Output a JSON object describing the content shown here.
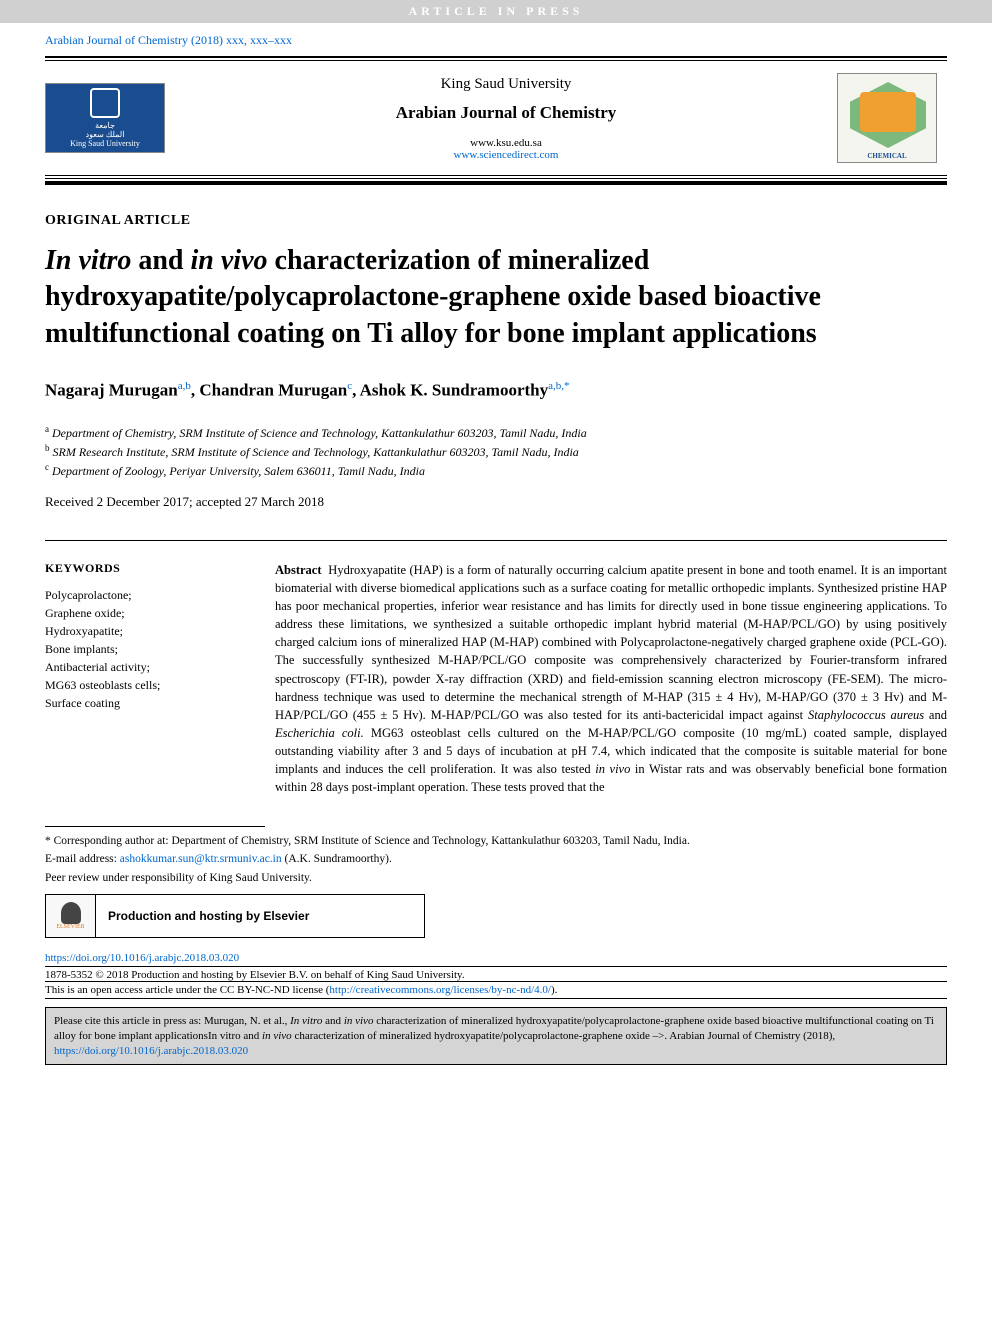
{
  "watermark": "ARTICLE IN PRESS",
  "running_header": "Arabian Journal of Chemistry (2018) xxx, xxx–xxx",
  "masthead": {
    "publisher": "King Saud University",
    "journal": "Arabian Journal of Chemistry",
    "url1": "www.ksu.edu.sa",
    "url2": "www.sciencedirect.com",
    "left_logo_line1": "جامعة",
    "left_logo_line2": "الملك سعود",
    "left_logo_line3": "King Saud University",
    "right_logo_label": "CHEMICAL"
  },
  "article": {
    "type": "ORIGINAL ARTICLE",
    "title_pre_italic1": "In vitro",
    "title_mid1": " and ",
    "title_italic2": "in vivo",
    "title_rest": " characterization of mineralized hydroxyapatite/polycaprolactone-graphene oxide based bioactive multifunctional coating on Ti alloy for bone implant applications",
    "authors": [
      {
        "name": "Nagaraj Murugan",
        "sup": "a,b"
      },
      {
        "name": "Chandran Murugan",
        "sup": "c"
      },
      {
        "name": "Ashok K. Sundramoorthy",
        "sup": "a,b,*"
      }
    ],
    "affiliations": [
      {
        "sup": "a",
        "text": "Department of Chemistry, SRM Institute of Science and Technology, Kattankulathur 603203, Tamil Nadu, India"
      },
      {
        "sup": "b",
        "text": "SRM Research Institute, SRM Institute of Science and Technology, Kattankulathur 603203, Tamil Nadu, India"
      },
      {
        "sup": "c",
        "text": "Department of Zoology, Periyar University, Salem 636011, Tamil Nadu, India"
      }
    ],
    "dates": "Received 2 December 2017; accepted 27 March 2018"
  },
  "keywords": {
    "heading": "KEYWORDS",
    "items": [
      "Polycaprolactone;",
      "Graphene oxide;",
      "Hydroxyapatite;",
      "Bone implants;",
      "Antibacterial activity;",
      "MG63 osteoblasts cells;",
      "Surface coating"
    ]
  },
  "abstract": {
    "lead": "Abstract",
    "body_part1": "Hydroxyapatite (HAP) is a form of naturally occurring calcium apatite present in bone and tooth enamel. It is an important biomaterial with diverse biomedical applications such as a surface coating for metallic orthopedic implants. Synthesized pristine HAP has poor mechanical properties, inferior wear resistance and has limits for directly used in bone tissue engineering applications. To address these limitations, we synthesized a suitable orthopedic implant hybrid material (M-HAP/PCL/GO) by using positively charged calcium ions of mineralized HAP (M-HAP) combined with Polycaprolactone-negatively charged graphene oxide (PCL-GO). The successfully synthesized M-HAP/PCL/GO composite was comprehensively characterized by Fourier-transform infrared spectroscopy (FT-IR), powder X-ray diffraction (XRD) and field-emission scanning electron microscopy (FE-SEM). The micro-hardness technique was used to determine the mechanical strength of M-HAP (315 ± 4 Hv), M-HAP/GO (370 ± 3 Hv) and M-HAP/PCL/GO (455 ± 5 Hv). M-HAP/PCL/GO was also tested for its anti-bactericidal impact against ",
    "italic1": "Staphylococcus aureus",
    "body_part2": " and ",
    "italic2": "Escherichia coli.",
    "body_part3": " MG63 osteoblast cells cultured on the M-HAP/PCL/GO composite (10 mg/mL) coated sample, displayed outstanding viability after 3 and 5 days of incubation at pH 7.4, which indicated that the composite is suitable material for bone implants and induces the cell proliferation. It was also tested ",
    "italic3": "in vivo",
    "body_part4": " in Wistar rats and was observably beneficial bone formation within 28 days post-implant operation. These tests proved that the"
  },
  "footer": {
    "corresp_label": "* Corresponding author at: Department of Chemistry, SRM Institute of Science and Technology, Kattankulathur 603203, Tamil Nadu, India.",
    "email_label": "E-mail address: ",
    "email": "ashokkumar.sun@ktr.srmuniv.ac.in",
    "email_after": " (A.K. Sundramoorthy).",
    "peer_review": "Peer review under responsibility of King Saud University.",
    "elsevier": "ELSEVIER",
    "hosting": "Production and hosting by Elsevier",
    "doi": "https://doi.org/10.1016/j.arabjc.2018.03.020",
    "copyright": "1878-5352 © 2018 Production and hosting by Elsevier B.V. on behalf of King Saud University.",
    "license_pre": "This is an open access article under the CC BY-NC-ND license (",
    "license_url": "http://creativecommons.org/licenses/by-nc-nd/4.0/",
    "license_post": ").",
    "cite_pre": "Please cite this article in press as: Murugan, N. et al., ",
    "cite_italic1": "In vitro",
    "cite_mid1": " and ",
    "cite_italic2": "in vivo",
    "cite_body": " characterization of mineralized hydroxyapatite/polycaprolactone-graphene oxide based bioactive multifunctional coating on Ti alloy for bone implant applicationsIn vitro and ",
    "cite_italic3": "in vivo",
    "cite_body2": " characterization of mineralized hydroxyapatite/polycaprolactone-graphene oxide –>. Arabian Journal of Chemistry (2018), ",
    "cite_doi": "https://doi.org/10.1016/j.arabjc.2018.03.020"
  },
  "colors": {
    "link": "#0066cc",
    "watermark_bg": "#d0d0d0",
    "cite_bg": "#d5d5d5",
    "logo_blue": "#1a4d8f",
    "soc_green": "#7db87d",
    "soc_orange": "#f0a030"
  }
}
